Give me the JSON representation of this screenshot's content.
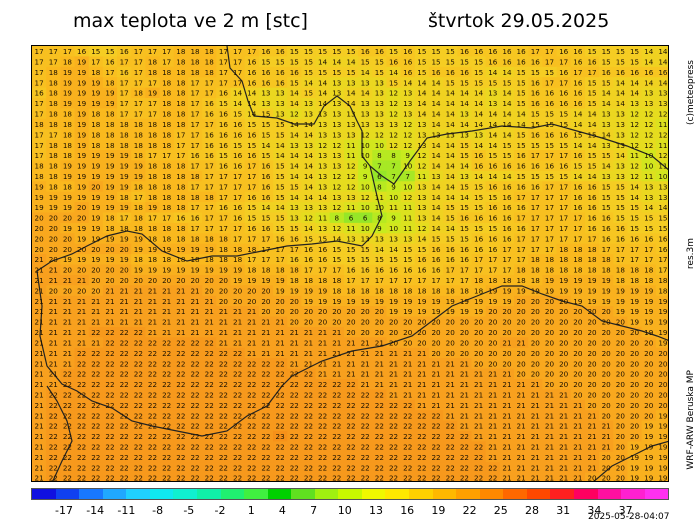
{
  "title_left": "max teplota ve 2 m [stc]",
  "title_right": "štvrtok 29.05.2025",
  "side_brand": "(c)meteopress",
  "side_res": "res.3m",
  "side_model": "WRF-ARW Beruska MP",
  "timestamp": "2025-05-28-04:07",
  "legend": {
    "labels": [
      "-17",
      "-14",
      "-11",
      "-8",
      "-5",
      "-2",
      "1",
      "4",
      "7",
      "10",
      "13",
      "16",
      "19",
      "22",
      "25",
      "28",
      "31",
      "34",
      "37"
    ],
    "colors": [
      "#1010e0",
      "#1040f0",
      "#1878ff",
      "#20a8ff",
      "#20d0ff",
      "#10e8f0",
      "#10f0d0",
      "#10f0a8",
      "#20f070",
      "#40f040",
      "#00d000",
      "#60e020",
      "#a0f010",
      "#c8f800",
      "#f0f800",
      "#ffe800",
      "#ffd000",
      "#ffb800",
      "#ffa000",
      "#ff8800",
      "#ff6800",
      "#ff4800",
      "#ff2020",
      "#ff0060",
      "#ff10a0",
      "#ff20d0",
      "#ff30f0"
    ]
  },
  "map": {
    "rows": [
      "17 17 17 16 15 15 16 17 17 17 18 18 18 17 17 17 16 16 15 15 15 15 15 16 16 15 16 15 15 15 16 16 16 16 16 17 17 16 16 15 15 15 15 14 14",
      "17 17 18 19 17 16 17 17 18 17 18 18 18 17 17 16 15 15 15 15 14 14 14 15 15 16 16 15 15 15 15 15 16 16 16 16 17 17 16 16 15 15 15 14 14",
      "17 18 19 19 18 17 16 17 18 18 18 18 18 17 17 16 16 16 16 15 15 15 15 14 15 14 16 15 16 16 16 15 14 14 15 15 15 16 17 17 16 16 16 16 16",
      "17 18 19 19 19 18 17 17 17 18 18 17 17 17 17 16 16 16 15 14 14 13 13 13 13 15 14 14 14 15 15 15 15 15 15 16 17 17 16 15 15 14 14 14 14",
      "16 18 19 19 19 19 17 18 19 18 18 17 17 16 14 14 13 13 14 15 14 13 14 14 13 12 13 14 14 14 14 14 13 14 15 16 16 16 16 15 14 14 14 13 13",
      "17 18 19 19 19 19 17 17 17 18 18 17 16 15 14 14 13 13 14 13 14 13 14 13 13 12 13 14 14 14 14 14 13 14 15 16 16 16 16 15 14 14 13 13 13",
      "17 18 18 19 18 18 17 17 17 18 18 17 16 16 15 14 15 13 12 13 13 13 13 13 13 12 13 14 14 14 13 14 14 14 14 15 15 15 14 14 13 13 12 12 12",
      "18 18 18 19 18 18 18 18 18 18 18 17 17 16 16 15 15 15 14 14 13 13 13 13 13 13 12 13 14 14 14 14 14 14 14 15 15 15 14 14 13 13 12 12 11",
      "17 17 18 19 18 18 18 18 18 18 17 17 16 16 16 16 15 15 14 14 13 13 13 12 12 12 12 13 13 13 13 13 14 14 15 16 16 16 15 15 14 13 12 12 12",
      "17 18 18 19 18 18 18 18 18 18 17 17 16 16 15 15 14 14 13 13 12 12 11 10 10 12 12 13 14 14 15 14 14 15 15 15 15 15 14 14 13 13 12 12 11",
      "17 18 18 19 19 19 19 18 17 17 17 16 16 15 16 16 15 14 14 14 13 13 11 10 8 8 9 12 14 14 15 16 15 15 16 17 17 17 16 15 15 14 11 10 12",
      "18 18 19 19 19 19 19 19 18 18 18 17 17 16 16 17 16 15 14 14 13 13 12 9 7 7 10 12 14 14 14 16 16 16 16 16 16 16 15 15 14 13 12 10 11",
      "18 18 19 19 19 19 19 19 18 18 18 18 17 17 17 17 16 15 14 14 13 12 12 9 6 7 7 11 13 14 13 14 14 14 15 15 15 15 14 14 13 13 12 11 10",
      "19 18 18 19 20 19 19 18 18 18 18 17 17 17 17 17 16 15 15 14 13 12 12 10 8 9 10 13 14 14 15 15 16 16 16 16 17 17 16 16 15 15 14 13 13",
      "19 19 19 19 19 19 18 17 18 18 18 18 18 17 17 16 16 15 14 14 14 13 13 12 11 10 12 13 14 14 14 15 15 16 17 17 17 17 16 16 15 15 14 13 13",
      "19 19 19 20 19 19 19 18 19 18 18 17 17 16 16 15 14 14 13 13 13 12 11 10 10 11 11 13 14 15 15 15 16 16 16 17 17 17 16 16 15 15 15 14 14",
      "20 20 20 20 19 18 17 18 17 17 16 16 17 17 16 15 15 15 13 12 11 8 6 6 8 9 11 13 14 15 16 16 16 16 17 17 17 17 17 16 16 15 15 15 15",
      "20 20 19 19 19 18 18 18 18 18 18 17 17 17 17 16 16 15 15 14 13 12 11 10 9 10 11 12 14 14 15 15 15 16 16 17 17 17 17 16 16 16 15 15 15",
      "20 20 20 19 19 19 19 19 18 18 18 18 18 18 17 17 17 16 16 15 15 14 13 13 13 13 13 14 15 15 15 16 16 16 17 17 17 17 17 17 16 16 16 16 16",
      "20 20 20 20 20 20 20 19 19 19 19 19 19 18 18 18 17 17 17 16 16 15 15 15 14 14 15 15 16 16 16 16 16 17 17 17 17 18 18 18 17 17 17 17 16",
      "21 20 19 19 19 19 19 18 18 18 18 18 18 18 18 17 17 17 16 16 16 15 15 15 15 15 15 16 16 16 16 17 17 17 17 18 18 18 18 18 18 17 17 17 17",
      "21 21 20 20 20 20 20 19 19 19 19 19 19 19 19 18 18 18 18 17 17 17 16 16 16 16 16 16 16 17 17 17 17 17 18 18 18 18 18 18 18 18 18 18 17",
      "21 21 21 21 20 20 20 20 20 20 20 20 20 20 19 19 19 19 18 18 18 18 17 17 17 17 17 17 17 17 17 18 18 18 18 18 19 19 19 19 19 18 18 18 18",
      "21 20 20 20 20 21 21 21 21 21 21 21 20 20 20 20 20 19 19 19 19 18 18 18 18 18 18 18 18 18 18 18 19 19 19 19 19 19 19 19 19 19 19 19 18",
      "21 21 21 21 21 21 21 21 21 21 21 21 21 20 20 20 20 20 20 19 19 19 19 19 19 19 19 19 19 19 19 19 19 19 20 20 20 20 19 19 19 19 19 19 19",
      "21 21 21 21 21 21 21 21 21 21 21 21 21 21 21 21 20 20 20 20 20 20 20 20 20 19 19 19 19 19 19 19 20 20 20 20 20 20 20 20 20 19 19 19 19",
      "21 21 21 21 21 21 21 21 21 21 21 21 21 21 21 21 21 21 20 20 20 20 20 20 20 20 20 20 20 20 20 20 20 20 20 20 20 20 20 20 20 20 19 19 19",
      "21 21 21 21 22 22 22 22 21 21 21 21 21 21 21 21 21 21 21 21 21 21 20 20 20 20 20 20 20 20 20 20 20 20 20 20 20 20 20 20 20 20 20 19 19",
      "21 21 21 21 21 22 22 22 22 22 22 22 22 21 21 21 21 21 21 21 21 21 21 21 21 20 20 20 20 20 20 20 20 21 21 20 20 20 20 20 20 20 20 20 19",
      "21 21 21 22 22 22 22 22 22 22 22 22 22 22 22 21 21 21 21 21 21 21 21 21 21 21 21 21 20 20 20 20 20 20 20 20 20 20 20 20 20 20 20 20 20",
      "21 21 21 22 22 22 22 22 22 22 22 22 22 22 22 22 22 22 21 21 21 21 21 21 21 21 21 21 21 21 21 20 20 20 20 20 20 20 20 20 20 20 20 20 20",
      "21 21 22 22 22 22 22 22 22 22 22 22 22 22 22 22 22 22 22 22 21 21 21 21 21 21 21 21 21 21 21 21 21 21 20 20 20 20 20 20 20 20 20 20 20",
      "21 21 22 22 22 22 22 22 22 22 22 22 22 22 22 22 22 22 22 22 22 22 22 21 21 21 21 21 21 21 21 21 21 21 21 21 20 20 20 20 20 20 20 20 20",
      "21 22 22 22 22 22 22 22 22 22 22 22 22 22 22 22 22 22 22 22 22 22 22 22 22 21 21 21 21 21 21 21 21 21 21 21 21 21 20 20 20 20 20 20 20",
      "21 22 22 22 22 22 22 22 22 22 22 22 22 22 22 22 22 22 22 22 22 22 22 22 22 22 22 21 21 21 21 21 21 21 21 21 21 21 21 20 20 20 20 20 20",
      "21 22 22 22 22 22 22 22 22 22 22 22 22 22 22 22 22 22 22 22 22 22 22 22 22 22 22 22 22 21 21 21 21 21 21 21 21 21 21 21 20 20 20 20 19",
      "21 22 22 22 22 22 22 22 22 22 22 22 22 22 22 22 22 22 22 22 22 22 22 22 22 22 22 22 22 22 21 21 21 21 21 21 21 21 21 21 21 20 20 19 19",
      "21 22 22 22 22 22 22 22 22 22 22 22 22 22 22 22 22 23 22 22 22 22 22 22 22 22 22 22 22 22 22 21 21 21 21 21 21 21 21 21 21 20 20 19 19",
      "21 22 22 22 22 22 22 22 22 22 22 22 22 22 22 22 22 22 22 22 22 22 22 22 22 22 22 22 22 22 22 22 21 21 21 21 21 21 21 21 21 20 19 19 19",
      "21 22 22 22 22 22 22 22 22 22 22 22 22 22 22 22 22 22 22 22 22 22 22 22 22 22 22 22 22 22 22 22 21 21 21 21 21 21 21 21 20 20 19 19 19",
      "21 22 22 22 22 22 22 22 22 22 22 22 22 22 22 22 22 22 22 22 22 22 22 22 22 22 22 22 22 22 22 22 22 21 21 21 21 21 21 21 20 20 19 19 19",
      "21 22 22 22 22 22 22 22 22 22 22 22 22 22 22 22 22 22 22 22 22 22 22 22 22 22 22 22 22 22 22 22 22 21 21 21 21 21 21 20 20 20 19 19 19"
    ]
  }
}
